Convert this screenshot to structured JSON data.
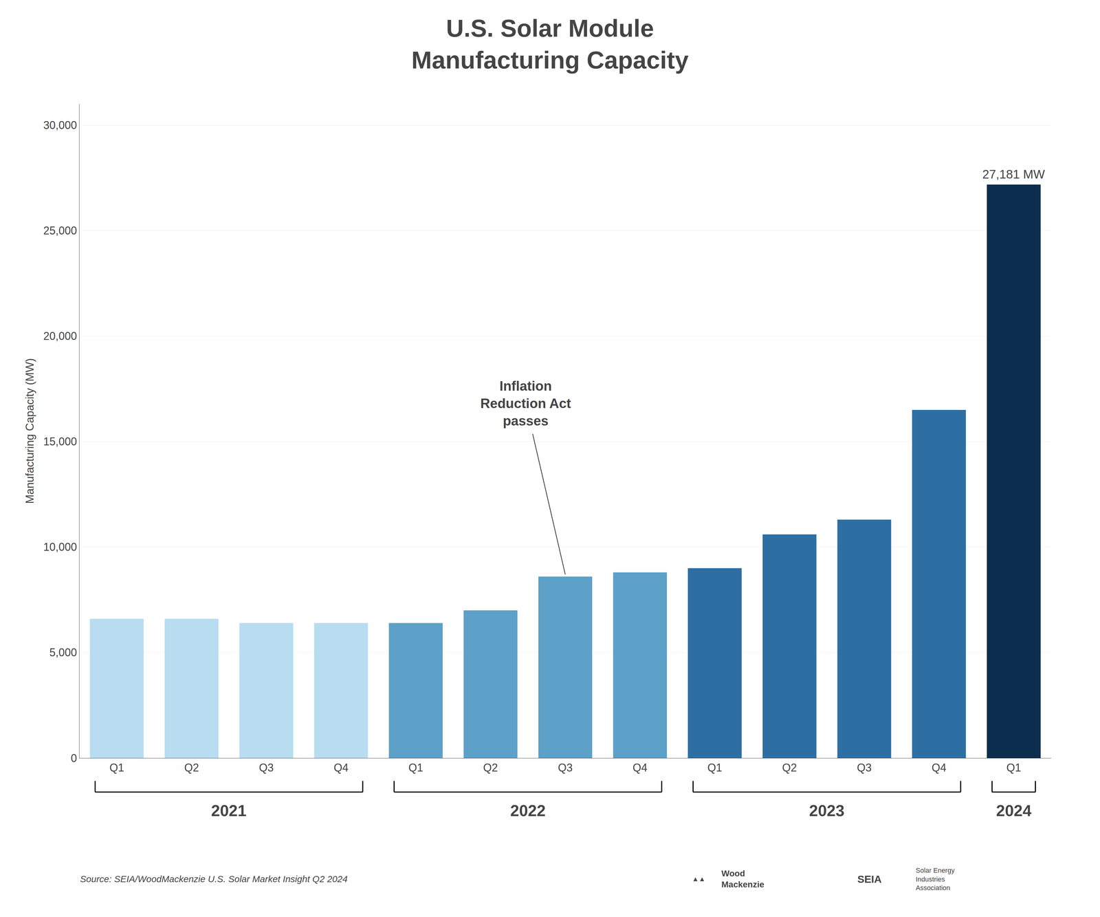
{
  "chart_data": {
    "type": "bar",
    "title": "U.S. Solar Module\nManufacturing Capacity",
    "ylabel": "Manufacturing Capacity (MW)",
    "categories": [
      "Q1",
      "Q2",
      "Q3",
      "Q4",
      "Q1",
      "Q2",
      "Q3",
      "Q4",
      "Q1",
      "Q2",
      "Q3",
      "Q4",
      "Q1"
    ],
    "values": [
      6600,
      6600,
      6400,
      6400,
      6400,
      7000,
      8600,
      8800,
      9000,
      10600,
      11300,
      16500,
      27181
    ],
    "colors": [
      "#b8ddf0",
      "#b8ddf0",
      "#b8ddf0",
      "#b8ddf0",
      "#5da0c8",
      "#5da0c8",
      "#5da0c8",
      "#5da0c8",
      "#2e6fa3",
      "#2e6fa3",
      "#2e6fa3",
      "#2e6fa3",
      "#0d2d4e"
    ],
    "groups": [
      {
        "label": "2021",
        "indices": [
          0,
          1,
          2,
          3
        ]
      },
      {
        "label": "2022",
        "indices": [
          4,
          5,
          6,
          7
        ]
      },
      {
        "label": "2023",
        "indices": [
          8,
          9,
          10,
          11
        ]
      },
      {
        "label": "2024",
        "indices": [
          12
        ]
      }
    ],
    "ylim": [
      0,
      31000
    ],
    "yticks": [
      0,
      {
        "value": 5000,
        "label": "5,000"
      },
      {
        "value": 10000,
        "label": "10,000"
      },
      {
        "value": 15000,
        "label": "15,000"
      },
      {
        "value": 20000,
        "label": "20,000"
      },
      {
        "value": 25000,
        "label": "25,000"
      },
      {
        "value": 30000,
        "label": "30,000"
      }
    ],
    "grid": true,
    "annotations": [
      {
        "text": "Inflation\nReduction Act\npasses",
        "x": 6,
        "y": 8700
      },
      {
        "text": "27,181 MW",
        "x": 12,
        "y": 27181
      }
    ],
    "source": "Source: SEIA/WoodMackenzie U.S. Solar Market Insight Q2 2024",
    "logos": [
      "▲▲",
      "Wood\nMackenzie",
      "SEIA",
      "Solar Energy\nIndustries\nAssociation"
    ]
  }
}
